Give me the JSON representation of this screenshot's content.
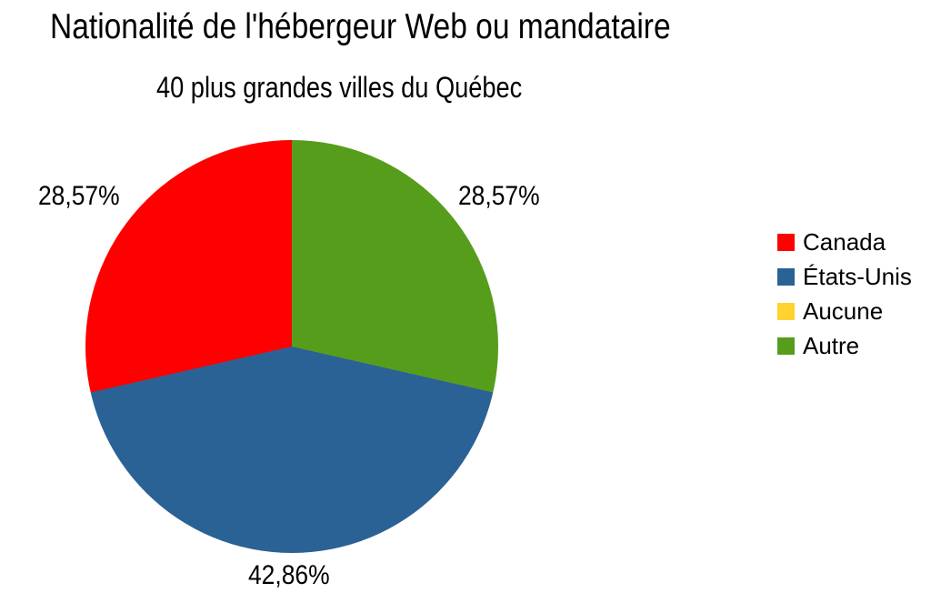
{
  "chart_data": {
    "type": "pie",
    "title": "Nationalité de l'hébergeur Web ou mandataire",
    "subtitle": "40 plus grandes villes du Québec",
    "legend_position": "right",
    "start_angle": "top",
    "direction": "counterclockwise",
    "value_format": "percent-comma-decimal",
    "slices": [
      {
        "label": "Canada",
        "value": 28.57,
        "display": "28,57%",
        "color": "#ff0000"
      },
      {
        "label": "États-Unis",
        "value": 42.86,
        "display": "42,86%",
        "color": "#2b6296"
      },
      {
        "label": "Aucune",
        "value": 0,
        "display": "",
        "color": "#ffd32e"
      },
      {
        "label": "Autre",
        "value": 28.57,
        "display": "28,57%",
        "color": "#579d1c"
      }
    ],
    "background_color": "#ffffff",
    "text_color": "#000000"
  }
}
